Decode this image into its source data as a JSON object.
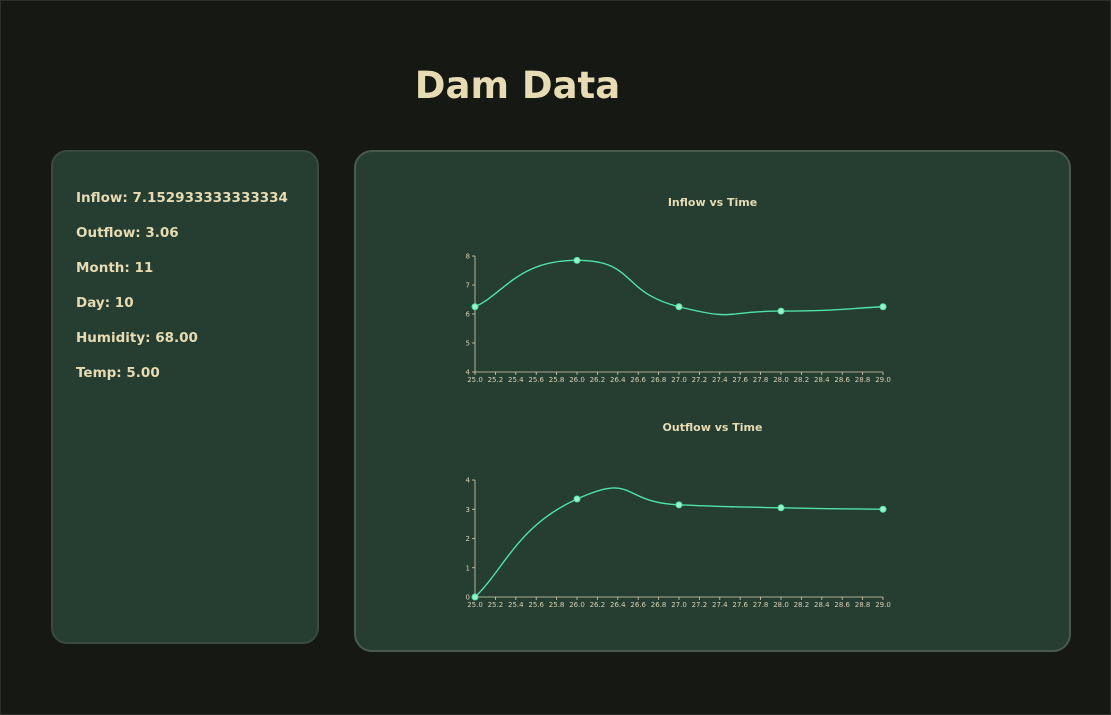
{
  "page": {
    "title": "Dam Data"
  },
  "info": {
    "inflow": "Inflow: 7.152933333333334",
    "outflow": "Outflow: 3.06",
    "month": "Month: 11",
    "day": "Day: 10",
    "humidity": "Humidity: 68.00",
    "temp": "Temp: 5.00"
  },
  "colors": {
    "background": "#161814",
    "panel": "#263d31",
    "text": "#e6dbb2",
    "line": "#4fe3a8",
    "point": "#9df0c8"
  },
  "chart_data": [
    {
      "type": "line",
      "title": "Inflow vs Time",
      "x": [
        25.0,
        26.0,
        27.0,
        28.0,
        29.0
      ],
      "series": [
        {
          "values": [
            6.25,
            7.85,
            6.25,
            6.1,
            6.25
          ]
        }
      ],
      "xlim": [
        25.0,
        29.0
      ],
      "ylim": [
        4,
        8
      ],
      "xticks": [
        "25.0",
        "25.2",
        "25.4",
        "25.6",
        "25.8",
        "26.0",
        "26.2",
        "26.4",
        "26.6",
        "26.8",
        "27.0",
        "27.2",
        "27.4",
        "27.6",
        "27.8",
        "28.0",
        "28.2",
        "28.4",
        "28.6",
        "28.8",
        "29.0"
      ],
      "yticks": [
        "4",
        "5",
        "6",
        "7",
        "8"
      ],
      "grid": false
    },
    {
      "type": "line",
      "title": "Outflow vs Time",
      "x": [
        25.0,
        26.0,
        27.0,
        28.0,
        29.0
      ],
      "series": [
        {
          "values": [
            0.0,
            3.35,
            3.15,
            3.05,
            3.0
          ]
        }
      ],
      "xlim": [
        25.0,
        29.0
      ],
      "ylim": [
        0,
        4
      ],
      "xticks": [
        "25.0",
        "25.2",
        "25.4",
        "25.6",
        "25.8",
        "26.0",
        "26.2",
        "26.4",
        "26.6",
        "26.8",
        "27.0",
        "27.2",
        "27.4",
        "27.6",
        "27.8",
        "28.0",
        "28.2",
        "28.4",
        "28.6",
        "28.8",
        "29.0"
      ],
      "yticks": [
        "0",
        "1",
        "2",
        "3",
        "4"
      ],
      "grid": false
    }
  ]
}
